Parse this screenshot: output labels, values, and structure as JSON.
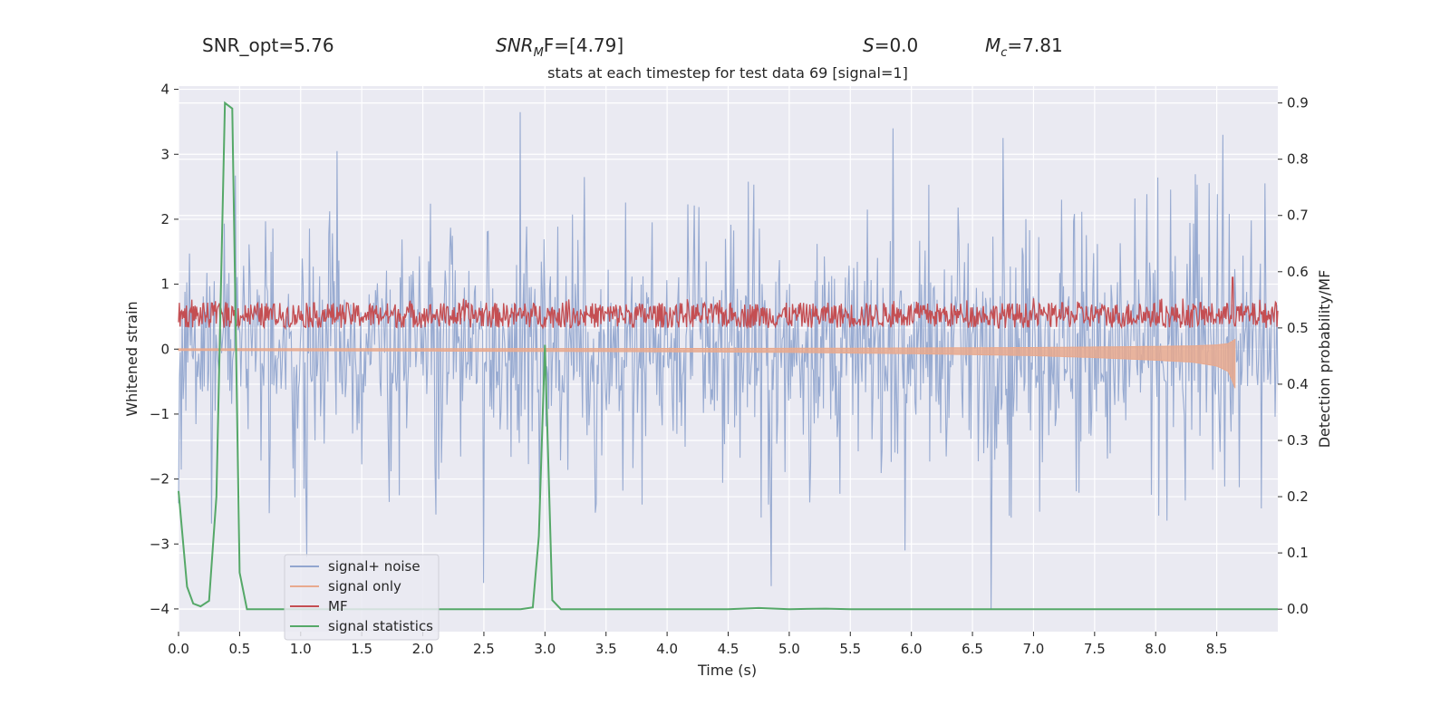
{
  "header": {
    "snr_opt": "SNR_opt=5.76",
    "snr_mf_main": "SNR",
    "snr_mf_sub": "M",
    "snr_mf_tail": "F=[4.79]",
    "s_main": "S",
    "s_tail": "=0.0",
    "mc_main": "M",
    "mc_sub": "c",
    "mc_tail": "=7.81"
  },
  "colors": {
    "plot_bg": "#eaeaf2",
    "grid": "#ffffff",
    "signal_noise": "#92a6cf",
    "signal_only": "#e8a98e",
    "mf": "#c44e52",
    "signal_statistics": "#55a868"
  },
  "chart_data": {
    "type": "line",
    "title": "stats at each timestep for test data 69 [signal=1]",
    "xlabel": "Time (s)",
    "ylabel": "Whitened strain",
    "ylabel_right": "Detection probability/MF",
    "xlim": [
      0.0,
      9.0
    ],
    "ylim": [
      -4.35,
      4.05
    ],
    "ylim_right": [
      -0.04,
      0.93
    ],
    "x_ticks": [
      0.0,
      0.5,
      1.0,
      1.5,
      2.0,
      2.5,
      3.0,
      3.5,
      4.0,
      4.5,
      5.0,
      5.5,
      6.0,
      6.5,
      7.0,
      7.5,
      8.0,
      8.5
    ],
    "x_tick_labels": [
      "0.0",
      "0.5",
      "1.0",
      "1.5",
      "2.0",
      "2.5",
      "3.0",
      "3.5",
      "4.0",
      "4.5",
      "5.0",
      "5.5",
      "6.0",
      "6.5",
      "7.0",
      "7.5",
      "8.0",
      "8.5"
    ],
    "y_ticks": [
      -4,
      -3,
      -2,
      -1,
      0,
      1,
      2,
      3,
      4
    ],
    "y_tick_labels": [
      "−4",
      "−3",
      "−2",
      "−1",
      "0",
      "1",
      "2",
      "3",
      "4"
    ],
    "y_ticks_right": [
      0.0,
      0.1,
      0.2,
      0.3,
      0.4,
      0.5,
      0.6,
      0.7,
      0.8,
      0.9
    ],
    "y_tick_labels_right": [
      "0.0",
      "0.1",
      "0.2",
      "0.3",
      "0.4",
      "0.5",
      "0.6",
      "0.7",
      "0.8",
      "0.9"
    ],
    "grid": true,
    "legend_position": "bottom-left",
    "series": [
      {
        "name": "signal+ noise",
        "axis": "left",
        "style": "noise band",
        "approx_envelope": [
          -2.2,
          2.2
        ],
        "notable_spikes_x_y": [
          [
            1.05,
            -3.2
          ],
          [
            1.3,
            3.05
          ],
          [
            2.5,
            -3.6
          ],
          [
            2.8,
            3.65
          ],
          [
            4.85,
            -3.65
          ],
          [
            5.85,
            3.4
          ],
          [
            5.95,
            -3.1
          ],
          [
            6.65,
            -4.0
          ],
          [
            6.75,
            3.25
          ],
          [
            8.55,
            3.3
          ]
        ]
      },
      {
        "name": "signal only",
        "axis": "left",
        "style": "chirp",
        "x": [
          0.0,
          1.0,
          2.0,
          3.0,
          4.0,
          5.0,
          6.0,
          7.0,
          7.5,
          8.0,
          8.3,
          8.5,
          8.6,
          8.65
        ],
        "amplitude": [
          0.02,
          0.025,
          0.03,
          0.035,
          0.04,
          0.05,
          0.07,
          0.1,
          0.13,
          0.17,
          0.2,
          0.26,
          0.35,
          0.6
        ]
      },
      {
        "name": "MF",
        "axis": "right",
        "style": "band",
        "approx_range": [
          0.5,
          0.545
        ],
        "peak_x_y": [
          8.63,
          0.59
        ]
      },
      {
        "name": "signal statistics",
        "axis": "right",
        "x": [
          0.0,
          0.07,
          0.12,
          0.18,
          0.25,
          0.31,
          0.38,
          0.44,
          0.5,
          0.56,
          0.63,
          2.8,
          2.9,
          2.95,
          3.0,
          3.06,
          3.13,
          3.2,
          4.5,
          4.75,
          5.0,
          5.3,
          5.5,
          9.0
        ],
        "y": [
          0.21,
          0.04,
          0.01,
          0.005,
          0.015,
          0.2,
          0.9,
          0.89,
          0.065,
          0.0,
          0.0,
          0.0,
          0.003,
          0.13,
          0.47,
          0.016,
          0.0,
          0.0,
          0.0,
          0.002,
          0.0,
          0.001,
          0.0,
          0.0
        ]
      }
    ]
  }
}
